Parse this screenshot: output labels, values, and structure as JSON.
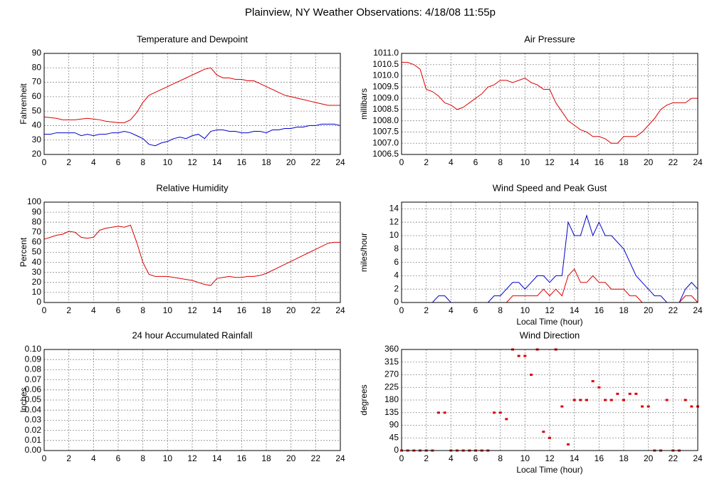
{
  "title": "Plainview, NY Weather Observations: 4/18/08 11:55p",
  "chart_data": [
    {
      "type": "line",
      "title": "Temperature and Dewpoint",
      "ylabel": "Fahrenheit",
      "x": [
        0,
        0.5,
        1,
        1.5,
        2,
        2.5,
        3,
        3.5,
        4,
        4.5,
        5,
        5.5,
        6,
        6.5,
        7,
        7.5,
        8,
        8.5,
        9,
        9.5,
        10,
        10.5,
        11,
        11.5,
        12,
        12.5,
        13,
        13.5,
        14,
        14.5,
        15,
        15.5,
        16,
        16.5,
        17,
        17.5,
        18,
        18.5,
        19,
        19.5,
        20,
        20.5,
        21,
        21.5,
        22,
        22.5,
        23,
        23.5,
        24
      ],
      "series": [
        {
          "color": "#dd0000",
          "values": [
            46,
            45.5,
            45,
            44,
            44,
            44,
            44.5,
            45,
            44.5,
            44,
            43,
            42.5,
            42,
            42,
            44,
            49,
            56,
            61,
            63,
            65,
            67,
            69,
            71,
            73,
            75,
            77,
            79,
            80,
            75,
            73,
            73,
            72,
            72,
            71,
            71,
            69,
            67,
            65,
            63,
            61,
            60,
            59,
            58,
            57,
            56,
            55,
            54,
            54,
            54
          ]
        },
        {
          "color": "#0000cc",
          "values": [
            34,
            34,
            35,
            35,
            35,
            35,
            33,
            34,
            33,
            34,
            34,
            35,
            35,
            36,
            35,
            33,
            31,
            27,
            26,
            28,
            29,
            31,
            32,
            31,
            33,
            34,
            31,
            36,
            37,
            37,
            36,
            36,
            35,
            35,
            36,
            36,
            35,
            37,
            37,
            38,
            38,
            39,
            39,
            40,
            40,
            41,
            41,
            41,
            40
          ]
        }
      ],
      "xlim": [
        0,
        24
      ],
      "xticks": [
        0,
        2,
        4,
        6,
        8,
        10,
        12,
        14,
        16,
        18,
        20,
        22,
        24
      ],
      "ylim": [
        20,
        90
      ],
      "yticks": [
        20,
        30,
        40,
        50,
        60,
        70,
        80,
        90
      ],
      "grid": true
    },
    {
      "type": "line",
      "title": "Air Pressure",
      "ylabel": "millibars",
      "x": [
        0,
        0.5,
        1,
        1.5,
        2,
        2.5,
        3,
        3.5,
        4,
        4.5,
        5,
        5.5,
        6,
        6.5,
        7,
        7.5,
        8,
        8.5,
        9,
        9.5,
        10,
        10.5,
        11,
        11.5,
        12,
        12.5,
        13,
        13.5,
        14,
        14.5,
        15,
        15.5,
        16,
        16.5,
        17,
        17.5,
        18,
        18.5,
        19,
        19.5,
        20,
        20.5,
        21,
        21.5,
        22,
        22.5,
        23,
        23.5,
        24
      ],
      "series": [
        {
          "color": "#dd0000",
          "values": [
            1010.6,
            1010.6,
            1010.5,
            1010.3,
            1009.4,
            1009.3,
            1009.1,
            1008.8,
            1008.7,
            1008.5,
            1008.6,
            1008.8,
            1009.0,
            1009.2,
            1009.5,
            1009.6,
            1009.8,
            1009.8,
            1009.7,
            1009.8,
            1009.9,
            1009.7,
            1009.6,
            1009.4,
            1009.4,
            1008.8,
            1008.4,
            1008.0,
            1007.8,
            1007.6,
            1007.5,
            1007.3,
            1007.3,
            1007.2,
            1007.0,
            1007.0,
            1007.3,
            1007.3,
            1007.3,
            1007.5,
            1007.8,
            1008.1,
            1008.5,
            1008.7,
            1008.8,
            1008.8,
            1008.8,
            1009.0,
            1009.0
          ]
        }
      ],
      "xlim": [
        0,
        24
      ],
      "xticks": [
        0,
        2,
        4,
        6,
        8,
        10,
        12,
        14,
        16,
        18,
        20,
        22,
        24
      ],
      "ylim": [
        1006.5,
        1011
      ],
      "yticks": [
        1006.5,
        {
          "value": 1007,
          "label": "1007.0"
        },
        1007.5,
        {
          "value": 1008,
          "label": "1008.0"
        },
        1008.5,
        {
          "value": 1009,
          "label": "1009.0"
        },
        1009.5,
        {
          "value": 1010,
          "label": "1010.0"
        },
        1010.5,
        {
          "value": 1011,
          "label": "1011.0"
        }
      ],
      "grid": true
    },
    {
      "type": "line",
      "title": "Relative Humidity",
      "ylabel": "Percent",
      "x": [
        0,
        0.5,
        1,
        1.5,
        2,
        2.5,
        3,
        3.5,
        4,
        4.5,
        5,
        5.5,
        6,
        6.5,
        7,
        7.5,
        8,
        8.5,
        9,
        9.5,
        10,
        10.5,
        11,
        11.5,
        12,
        12.5,
        13,
        13.5,
        14,
        14.5,
        15,
        15.5,
        16,
        16.5,
        17,
        17.5,
        18,
        18.5,
        19,
        19.5,
        20,
        20.5,
        21,
        21.5,
        22,
        22.5,
        23,
        23.5,
        24
      ],
      "series": [
        {
          "color": "#dd0000",
          "values": [
            63,
            65,
            67,
            68,
            71,
            70,
            65,
            64,
            65,
            72,
            74,
            75,
            76,
            75,
            77,
            60,
            40,
            28,
            26,
            26,
            26,
            25,
            24,
            23,
            22,
            20,
            18,
            17,
            24,
            25,
            26,
            25,
            25,
            26,
            26,
            27,
            29,
            32,
            35,
            38,
            41,
            44,
            47,
            50,
            53,
            56,
            59,
            60,
            60
          ]
        }
      ],
      "xlim": [
        0,
        24
      ],
      "xticks": [
        0,
        2,
        4,
        6,
        8,
        10,
        12,
        14,
        16,
        18,
        20,
        22,
        24
      ],
      "ylim": [
        0,
        100
      ],
      "yticks": [
        0,
        10,
        20,
        30,
        40,
        50,
        60,
        70,
        80,
        90,
        100
      ],
      "grid": true
    },
    {
      "type": "line",
      "title": "Wind Speed and Peak Gust",
      "ylabel": "miles/hour",
      "xlabel": "Local Time (hour)",
      "x": [
        0,
        0.5,
        1,
        1.5,
        2,
        2.5,
        3,
        3.5,
        4,
        4.5,
        5,
        5.5,
        6,
        6.5,
        7,
        7.5,
        8,
        8.5,
        9,
        9.5,
        10,
        10.5,
        11,
        11.5,
        12,
        12.5,
        13,
        13.5,
        14,
        14.5,
        15,
        15.5,
        16,
        16.5,
        17,
        17.5,
        18,
        18.5,
        19,
        19.5,
        20,
        20.5,
        21,
        21.5,
        22,
        22.5,
        23,
        23.5,
        24
      ],
      "series": [
        {
          "color": "#0000cc",
          "values": [
            0,
            0,
            0,
            0,
            0,
            0,
            1,
            1,
            0,
            0,
            0,
            0,
            0,
            0,
            0,
            1,
            1,
            2,
            3,
            3,
            2,
            3,
            4,
            4,
            3,
            4,
            4,
            12,
            10,
            10,
            13,
            10,
            12,
            10,
            10,
            9,
            8,
            6,
            4,
            3,
            2,
            1,
            1,
            0,
            0,
            0,
            2,
            3,
            2
          ]
        },
        {
          "color": "#dd0000",
          "values": [
            0,
            0,
            0,
            0,
            0,
            0,
            0,
            0,
            0,
            0,
            0,
            0,
            0,
            0,
            0,
            0,
            0,
            0,
            1,
            1,
            1,
            1,
            1,
            2,
            1,
            2,
            1,
            4,
            5,
            3,
            3,
            4,
            3,
            3,
            2,
            2,
            2,
            1,
            1,
            0,
            0,
            0,
            0,
            0,
            0,
            0,
            1,
            1,
            0
          ]
        }
      ],
      "xlim": [
        0,
        24
      ],
      "xticks": [
        0,
        2,
        4,
        6,
        8,
        10,
        12,
        14,
        16,
        18,
        20,
        22,
        24
      ],
      "ylim": [
        0,
        15
      ],
      "yticks": [
        0,
        2,
        4,
        6,
        8,
        10,
        12,
        14
      ],
      "grid": true
    },
    {
      "type": "line",
      "title": "24 hour Accumulated Rainfall",
      "ylabel": "Inches",
      "x": [
        0,
        24
      ],
      "series": [
        {
          "color": "#dd0000",
          "values": [
            0,
            0
          ]
        }
      ],
      "xlim": [
        0,
        24
      ],
      "xticks": [
        0,
        2,
        4,
        6,
        8,
        10,
        12,
        14,
        16,
        18,
        20,
        22,
        24
      ],
      "ylim": [
        0,
        0.1
      ],
      "yticks": [
        {
          "value": 0,
          "label": "0.00"
        },
        0.01,
        0.02,
        0.03,
        0.04,
        0.05,
        0.06,
        0.07,
        0.08,
        0.09,
        {
          "value": 0.1,
          "label": "0.10"
        }
      ],
      "grid": true
    },
    {
      "type": "scatter",
      "title": "Wind Direction",
      "ylabel": "degrees",
      "xlabel": "Local Time (hour)",
      "x": [
        0,
        0.5,
        1,
        1.5,
        2,
        2.5,
        3,
        3.5,
        4,
        4.5,
        5,
        5.5,
        6,
        6.5,
        7,
        7.5,
        8,
        8.5,
        9,
        9.5,
        10,
        10.5,
        11,
        11.5,
        12,
        12.5,
        13,
        13.5,
        14,
        14.5,
        15,
        15.5,
        16,
        16.5,
        17,
        17.5,
        18,
        18.5,
        19,
        19.5,
        20,
        20.5,
        21,
        21.5,
        22,
        22.5,
        23,
        23.5,
        24
      ],
      "series": [
        {
          "color": "#dd0000",
          "values": [
            0,
            0,
            0,
            0,
            0,
            0,
            135,
            135,
            0,
            0,
            0,
            0,
            0,
            0,
            0,
            135,
            135,
            112,
            360,
            337,
            337,
            270,
            360,
            67,
            45,
            360,
            157,
            22,
            180,
            180,
            180,
            247,
            225,
            180,
            180,
            202,
            180,
            202,
            202,
            157,
            157,
            0,
            0,
            180,
            0,
            0,
            180,
            157,
            157
          ]
        }
      ],
      "xlim": [
        0,
        24
      ],
      "xticks": [
        0,
        2,
        4,
        6,
        8,
        10,
        12,
        14,
        16,
        18,
        20,
        22,
        24
      ],
      "ylim": [
        0,
        360
      ],
      "yticks": [
        0,
        45,
        90,
        135,
        180,
        225,
        270,
        315,
        360
      ],
      "grid": true
    }
  ]
}
